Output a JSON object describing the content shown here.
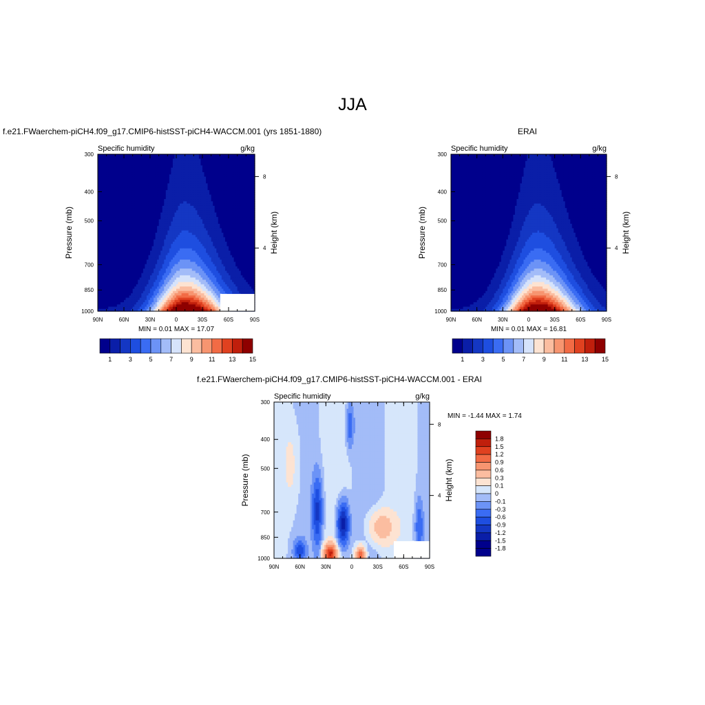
{
  "title": "JJA",
  "colors": {
    "model_obs_levels": [
      "#00008c",
      "#0a1ea8",
      "#1437c3",
      "#1e4ee0",
      "#3a6cf3",
      "#6c93f6",
      "#a3bcf8",
      "#d6e3fb",
      "#fde3d2",
      "#fbbda0",
      "#f79570",
      "#f26b45",
      "#e04120",
      "#c01f0c",
      "#8e0000"
    ],
    "diff_levels": [
      "#00008c",
      "#0a1ea8",
      "#1437c3",
      "#1e4ee0",
      "#3a6cf3",
      "#6c93f6",
      "#a3bcf8",
      "#d6e6fb",
      "#fde3d2",
      "#fbbda0",
      "#f79570",
      "#f26b45",
      "#e04120",
      "#c01f0c",
      "#8e0000"
    ]
  },
  "panels": {
    "model": {
      "title": "f.e21.FWaerchem-piCH4.f09_g17.CMIP6-histSST-piCH4-WACCM.001 (yrs 1851-1880)",
      "left_label": "Specific humidity",
      "right_label": "g/kg",
      "stats": "MIN =   0.01  MAX =  17.07"
    },
    "obs": {
      "title": "ERAI",
      "left_label": "Specific humidity",
      "right_label": "g/kg",
      "stats": "MIN =   0.01  MAX =  16.81"
    },
    "diff": {
      "title": "f.e21.FWaerchem-piCH4.f09_g17.CMIP6-histSST-piCH4-WACCM.001 - ERAI",
      "left_label": "Specific humidity",
      "right_label": "g/kg",
      "stats": "MIN =  -1.44  MAX =   1.74"
    }
  },
  "chart_data": [
    {
      "type": "heatmap",
      "name": "model",
      "title": "f.e21.FWaerchem-piCH4.f09_g17.CMIP6-histSST-piCH4-WACCM.001 (yrs 1851-1880)",
      "variable": "Specific humidity",
      "units": "g/kg",
      "xlabel": "",
      "ylabel": "Pressure (mb)",
      "y2label": "Height (km)",
      "x_ticks": [
        "90N",
        "60N",
        "30N",
        "0",
        "30S",
        "60S",
        "90S"
      ],
      "y_ticks": [
        "300",
        "400",
        "500",
        "700",
        "850",
        "1000"
      ],
      "y2_ticks": [
        "8",
        "4"
      ],
      "colorbar_ticks": [
        "1",
        "3",
        "5",
        "7",
        "9",
        "11",
        "13",
        "15"
      ],
      "min": 0.01,
      "max": 17.07,
      "peak_lat": -10,
      "surface_value": 17.07
    },
    {
      "type": "heatmap",
      "name": "obs",
      "title": "ERAI",
      "variable": "Specific humidity",
      "units": "g/kg",
      "xlabel": "",
      "ylabel": "Pressure (mb)",
      "y2label": "Height (km)",
      "x_ticks": [
        "90N",
        "60N",
        "30N",
        "0",
        "30S",
        "60S",
        "90S"
      ],
      "y_ticks": [
        "300",
        "400",
        "500",
        "700",
        "850",
        "1000"
      ],
      "y2_ticks": [
        "8",
        "4"
      ],
      "colorbar_ticks": [
        "1",
        "3",
        "5",
        "7",
        "9",
        "11",
        "13",
        "15"
      ],
      "min": 0.01,
      "max": 16.81,
      "peak_lat": -10,
      "surface_value": 16.81
    },
    {
      "type": "heatmap",
      "name": "diff",
      "title": "f.e21.FWaerchem-piCH4.f09_g17.CMIP6-histSST-piCH4-WACCM.001 - ERAI",
      "variable": "Specific humidity",
      "units": "g/kg",
      "xlabel": "",
      "ylabel": "Pressure (mb)",
      "y2label": "Height (km)",
      "x_ticks": [
        "90N",
        "60N",
        "30N",
        "0",
        "30S",
        "60S",
        "90S"
      ],
      "y_ticks": [
        "300",
        "400",
        "500",
        "700",
        "850",
        "1000"
      ],
      "y2_ticks": [
        "8",
        "4"
      ],
      "colorbar_ticks": [
        "1.8",
        "1.5",
        "1.2",
        "0.9",
        "0.6",
        "0.3",
        "0.1",
        "0",
        "-0.1",
        "-0.3",
        "-0.6",
        "-0.9",
        "-1.2",
        "-1.5",
        "-1.8"
      ],
      "min": -1.44,
      "max": 1.74
    }
  ]
}
